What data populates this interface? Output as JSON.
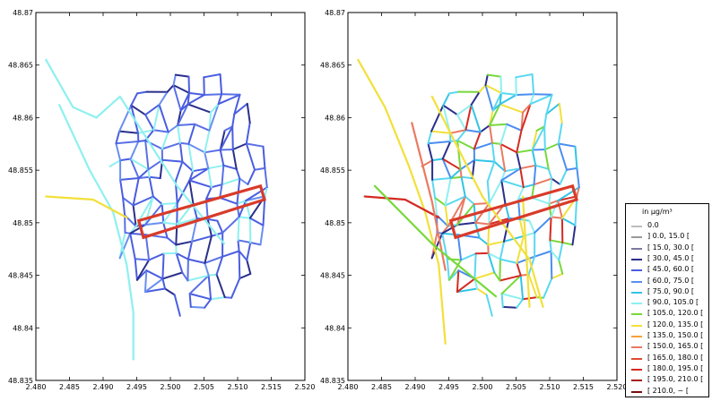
{
  "chart_data": [
    {
      "type": "map",
      "panel": "left",
      "xlim": [
        2.48,
        2.52
      ],
      "ylim": [
        48.835,
        48.87
      ],
      "xticks": [
        "2.480",
        "2.485",
        "2.490",
        "2.495",
        "2.500",
        "2.505",
        "2.510",
        "2.515",
        "2.520"
      ],
      "yticks": [
        "48.835",
        "48.84",
        "48.845",
        "48.85",
        "48.855",
        "48.86",
        "48.865",
        "48.87"
      ],
      "dominant_color": "#4a5ee0",
      "grid": false
    },
    {
      "type": "map",
      "panel": "right",
      "xlim": [
        2.48,
        2.52
      ],
      "ylim": [
        48.835,
        48.87
      ],
      "xticks": [
        "2.480",
        "2.485",
        "2.490",
        "2.495",
        "2.500",
        "2.505",
        "2.510",
        "2.515",
        "2.520"
      ],
      "yticks": [
        "48.835",
        "48.84",
        "48.845",
        "48.85",
        "48.855",
        "48.86",
        "48.865",
        "48.87"
      ],
      "dominant_color": "#5ad8f0",
      "grid": false
    }
  ],
  "legend": {
    "title": "in μg/m³",
    "placement": "lower-right",
    "items": [
      {
        "label": "0.0",
        "color": "#bdbdbd"
      },
      {
        "label": "] 0.0, 15.0 [",
        "color": "#9a9a9a"
      },
      {
        "label": "[ 15.0, 30.0 [",
        "color": "#7a7aa0"
      },
      {
        "label": "[ 30.0, 45.0 [",
        "color": "#2a2f8a"
      },
      {
        "label": "[ 45.0, 60.0 [",
        "color": "#4a5ee0"
      },
      {
        "label": "[ 60.0, 75.0 [",
        "color": "#5a8ef0"
      },
      {
        "label": "[ 75.0, 90.0 [",
        "color": "#33c4e6"
      },
      {
        "label": "[ 90.0, 105.0 [",
        "color": "#8ef0f0"
      },
      {
        "label": "[ 105.0, 120.0 [",
        "color": "#77d93a"
      },
      {
        "label": "[ 120.0, 135.0 [",
        "color": "#f2e03a"
      },
      {
        "label": "[ 135.0, 150.0 [",
        "color": "#f4a13a"
      },
      {
        "label": "[ 150.0, 165.0 [",
        "color": "#ea7a62"
      },
      {
        "label": "[ 165.0, 180.0 [",
        "color": "#e04a32"
      },
      {
        "label": "[ 180.0, 195.0 [",
        "color": "#d42a22"
      },
      {
        "label": "[ 195.0, 210.0 [",
        "color": "#a81a18"
      },
      {
        "label": "[ 210.0, ~ [",
        "color": "#7a0e10"
      }
    ]
  },
  "highlight_color": "#d93a2a"
}
